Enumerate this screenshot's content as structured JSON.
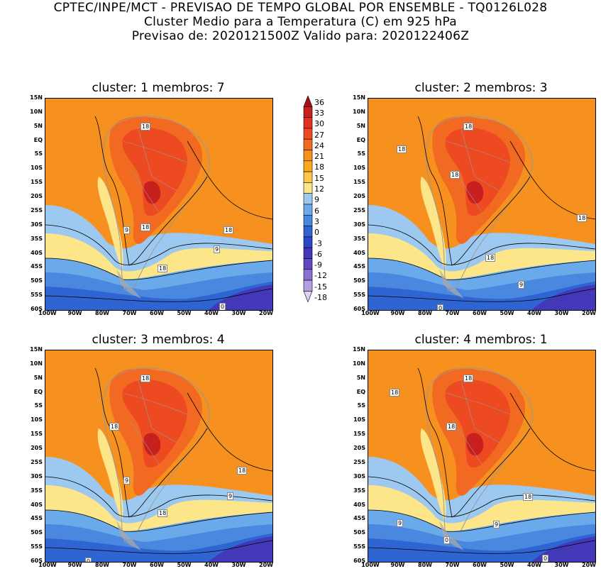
{
  "header": {
    "line1": "CPTEC/INPE/MCT - PREVISAO DE TEMPO GLOBAL POR ENSEMBLE - TQ0126L028",
    "line2": "Cluster Medio para a Temperatura (C) em 925 hPa",
    "line3": "Previsao de: 2020121500Z   Valido para: 2020122406Z"
  },
  "panels": [
    {
      "title": "cluster: 1  membros: 7"
    },
    {
      "title": "cluster: 2  membros: 3"
    },
    {
      "title": "cluster: 3  membros: 4"
    },
    {
      "title": "cluster: 4  membros: 1"
    }
  ],
  "lat_labels": [
    "15N",
    "10N",
    "5N",
    "EQ",
    "5S",
    "10S",
    "15S",
    "20S",
    "25S",
    "30S",
    "35S",
    "40S",
    "45S",
    "50S",
    "55S",
    "60S"
  ],
  "lon_labels": [
    "100W",
    "90W",
    "80W",
    "70W",
    "60W",
    "50W",
    "40W",
    "30W",
    "20W"
  ],
  "colorbar": {
    "labels": [
      "36",
      "33",
      "30",
      "27",
      "24",
      "21",
      "18",
      "15",
      "12",
      "9",
      "6",
      "3",
      "0",
      "-3",
      "-6",
      "-9",
      "-12",
      "-15",
      "-18"
    ],
    "colors": [
      "#a50f15",
      "#c81f1f",
      "#e0301e",
      "#ee4a22",
      "#f26a22",
      "#f6901e",
      "#faa81e",
      "#fcc84a",
      "#fde58a",
      "#9dc9f0",
      "#6aa9ea",
      "#4a88e0",
      "#2f65d2",
      "#2a48c8",
      "#4338b8",
      "#6147c2",
      "#8a6fd0",
      "#b3a0e0",
      "#dcd2f2"
    ]
  },
  "contour_labels": {
    "p1": [
      "18",
      "18",
      "18",
      "9",
      "9",
      "18",
      "0"
    ],
    "p2": [
      "18",
      "18",
      "18",
      "18",
      "18",
      "9",
      "0"
    ],
    "p3": [
      "18",
      "18",
      "9",
      "18",
      "9",
      "18",
      "0"
    ],
    "p4": [
      "18",
      "18",
      "18",
      "18",
      "9",
      "9",
      "0",
      "0"
    ]
  }
}
